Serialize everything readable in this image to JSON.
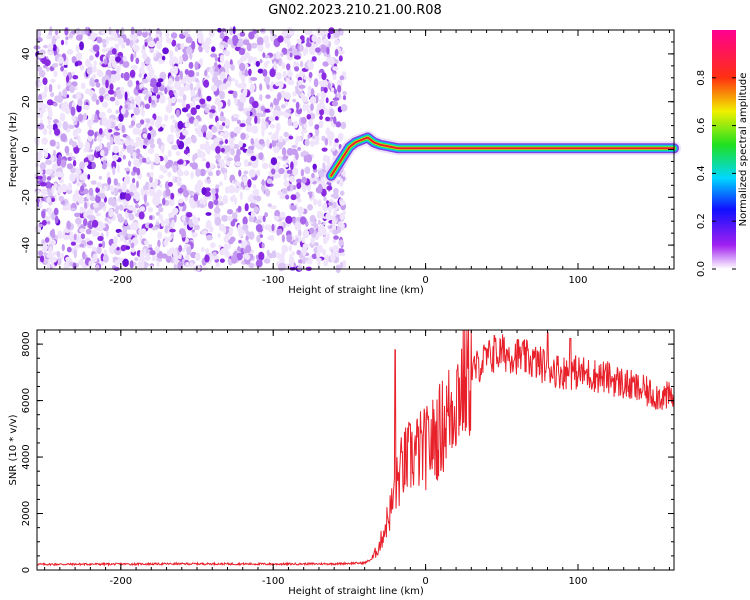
{
  "title": "GN02.2023.210.21.00.R08",
  "colors": {
    "snr_line": "#e8202a",
    "noise": "#8a2be2",
    "band_core": "#e8202a",
    "band_edge": "#00c8ff",
    "axis": "#000000"
  },
  "chart_data": [
    {
      "type": "heatmap",
      "name": "spectrogram",
      "xlabel": "Height of straight line (km)",
      "ylabel": "Frequency (Hz)",
      "xlim": [
        -255,
        163
      ],
      "ylim": [
        -50,
        50
      ],
      "x_ticks": [
        -200,
        -100,
        0,
        100
      ],
      "x_tick_labels": [
        "-200",
        "-100",
        "0",
        "100"
      ],
      "y_ticks": [
        -40,
        -20,
        0,
        20,
        40
      ],
      "y_tick_labels": [
        "-40",
        "-20",
        "0",
        "20",
        "40"
      ],
      "colorbar": {
        "label": "Normalized spectral amplitude",
        "range": [
          0,
          1
        ],
        "ticks": [
          0.0,
          0.2,
          0.4,
          0.6,
          0.8
        ],
        "tick_labels": [
          "0.0",
          "0.2",
          "0.4",
          "0.6",
          "0.8"
        ],
        "colormap": "rainbow (white-purple-blue-cyan-green-yellow-red-magenta)"
      },
      "noise_region": {
        "x_from": -255,
        "x_to": -53,
        "frequency_range": [
          -50,
          50
        ]
      },
      "signal_trace": {
        "x": [
          -62,
          -58,
          -54,
          -50,
          -46,
          -42,
          -38,
          -34,
          -30,
          -26,
          -22,
          -18,
          -14,
          -10,
          -6,
          -2,
          0,
          20,
          40,
          60,
          80,
          85,
          90,
          100,
          120,
          140,
          163
        ],
        "frequency_hz": [
          -11,
          -7,
          -3,
          1,
          3,
          4,
          5,
          3,
          2,
          1.5,
          1,
          0.5,
          0.5,
          0.5,
          0.5,
          0.5,
          0.5,
          0.5,
          0.5,
          0.5,
          0.5,
          0.5,
          0.5,
          0.5,
          0.5,
          0.5,
          0.5
        ]
      },
      "grid": false
    },
    {
      "type": "line",
      "name": "snr",
      "xlabel": "Height of straight line (km)",
      "ylabel": "SNR (10 * v/v)",
      "xlim": [
        -255,
        163
      ],
      "ylim": [
        0,
        8500
      ],
      "x_ticks": [
        -200,
        -100,
        0,
        100
      ],
      "x_tick_labels": [
        "-200",
        "-100",
        "0",
        "100"
      ],
      "y_ticks": [
        0,
        2000,
        4000,
        6000,
        8000
      ],
      "y_tick_labels": [
        "0",
        "2000",
        "4000",
        "6000",
        "8000"
      ],
      "x": [
        -255,
        -200,
        -150,
        -100,
        -60,
        -40,
        -35,
        -30,
        -25,
        -22,
        -20,
        -18,
        -15,
        -10,
        -5,
        0,
        5,
        10,
        15,
        20,
        25,
        30,
        40,
        50,
        60,
        70,
        80,
        90,
        100,
        110,
        120,
        130,
        140,
        150,
        163
      ],
      "values": [
        200,
        210,
        220,
        210,
        220,
        250,
        400,
        900,
        1800,
        2300,
        2800,
        3200,
        3700,
        4000,
        4200,
        4300,
        4600,
        5000,
        5500,
        6200,
        6700,
        7000,
        7500,
        7700,
        7600,
        7400,
        7200,
        7000,
        7000,
        6900,
        6800,
        6600,
        6400,
        6200,
        6100
      ],
      "peak_spikes": [
        {
          "x": -20,
          "value": 7800
        },
        {
          "x": 45,
          "value": 8300
        },
        {
          "x": 80,
          "value": 8400
        },
        {
          "x": 95,
          "value": 8200
        }
      ],
      "grid": false
    }
  ]
}
